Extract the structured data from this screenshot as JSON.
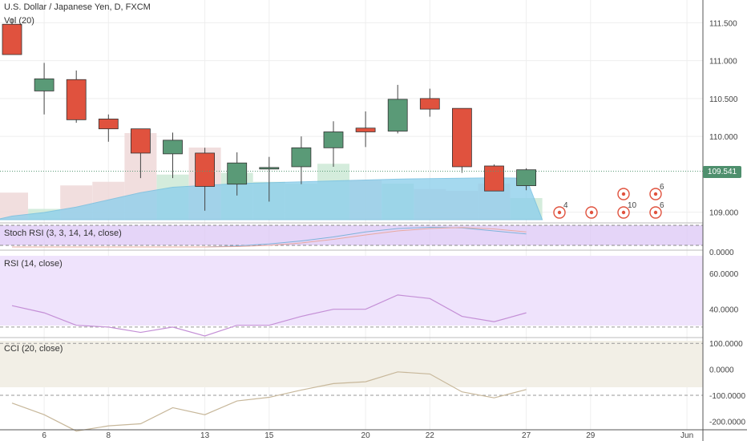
{
  "chart_data": [
    {
      "type": "candlestick",
      "title": "U.S. Dollar / Japanese Yen, D, FXCM",
      "volume_label": "Vol (20)",
      "x_tick_labels": [
        "6",
        "8",
        "13",
        "15",
        "20",
        "22",
        "27",
        "29",
        "Jun"
      ],
      "y_tick_labels": [
        "111.500",
        "111.000",
        "110.500",
        "110.000",
        "109.000"
      ],
      "ylim": [
        108.88,
        111.8
      ],
      "last_price": "109.541",
      "candles": [
        {
          "o": 111.48,
          "h": 111.55,
          "l": 111.08,
          "c": 111.08
        },
        {
          "o": 110.6,
          "h": 110.97,
          "l": 110.29,
          "c": 110.76
        },
        {
          "o": 110.75,
          "h": 110.87,
          "l": 110.18,
          "c": 110.22
        },
        {
          "o": 110.23,
          "h": 110.29,
          "l": 109.93,
          "c": 110.1
        },
        {
          "o": 110.1,
          "h": 110.1,
          "l": 109.45,
          "c": 109.78
        },
        {
          "o": 109.77,
          "h": 110.05,
          "l": 109.45,
          "c": 109.95
        },
        {
          "o": 109.78,
          "h": 109.85,
          "l": 109.02,
          "c": 109.34
        },
        {
          "o": 109.37,
          "h": 109.79,
          "l": 109.22,
          "c": 109.65
        },
        {
          "o": 109.57,
          "h": 109.73,
          "l": 109.14,
          "c": 109.59
        },
        {
          "o": 109.6,
          "h": 110.0,
          "l": 109.37,
          "c": 109.85
        },
        {
          "o": 109.85,
          "h": 110.2,
          "l": 109.6,
          "c": 110.06
        },
        {
          "o": 110.11,
          "h": 110.33,
          "l": 109.86,
          "c": 110.06
        },
        {
          "o": 110.07,
          "h": 110.68,
          "l": 110.04,
          "c": 110.49
        },
        {
          "o": 110.5,
          "h": 110.63,
          "l": 110.26,
          "c": 110.36
        },
        {
          "o": 110.37,
          "h": 110.37,
          "l": 109.52,
          "c": 109.6
        },
        {
          "o": 109.61,
          "h": 109.63,
          "l": 109.28,
          "c": 109.28
        },
        {
          "o": 109.35,
          "h": 109.58,
          "l": 109.29,
          "c": 109.56
        }
      ],
      "volumes": [
        150,
        60,
        190,
        210,
        480,
        250,
        400,
        260,
        210,
        200,
        310,
        220,
        200,
        170,
        160,
        200,
        120
      ],
      "volume_avg": [
        20,
        40,
        70,
        110,
        150,
        180,
        190,
        200,
        205,
        210,
        215,
        220,
        225,
        228,
        230,
        232,
        230
      ],
      "events": [
        {
          "label": "4"
        },
        {
          "label": ""
        },
        {
          "label": "10"
        },
        {
          "label": ""
        },
        {
          "label": "6"
        },
        {
          "label": "6"
        }
      ]
    },
    {
      "type": "line",
      "title": "Stoch RSI (3, 3, 14, 14, close)",
      "y_tick_labels": [
        "0.0000"
      ],
      "ylim": [
        0,
        100
      ],
      "series": [
        {
          "values": [
            0,
            0,
            0,
            0,
            0,
            0,
            0,
            5,
            15,
            30,
            50,
            75,
            92,
            98,
            95,
            80,
            65
          ]
        },
        {
          "values": [
            0,
            0,
            0,
            0,
            0,
            0,
            0,
            2,
            8,
            20,
            38,
            60,
            80,
            92,
            97,
            90,
            75
          ]
        }
      ]
    },
    {
      "type": "line",
      "title": "RSI (14, close)",
      "y_tick_labels": [
        "60.0000",
        "40.0000"
      ],
      "ylim": [
        25,
        70
      ],
      "bands": [
        30,
        70
      ],
      "values": [
        42,
        38,
        31,
        30,
        27,
        30,
        25,
        31,
        31,
        36,
        40,
        40,
        48,
        46,
        36,
        33,
        38
      ]
    },
    {
      "type": "line",
      "title": "CCI (20, close)",
      "y_tick_labels": [
        "100.0000",
        "0.0000",
        "-100.0000",
        "-200.0000"
      ],
      "ylim": [
        -230,
        110
      ],
      "bands": [
        -100,
        100
      ],
      "values": [
        -130,
        -175,
        -238,
        -218,
        -210,
        -148,
        -175,
        -122,
        -108,
        -80,
        -55,
        -48,
        -10,
        -18,
        -87,
        -110,
        -78
      ]
    }
  ]
}
